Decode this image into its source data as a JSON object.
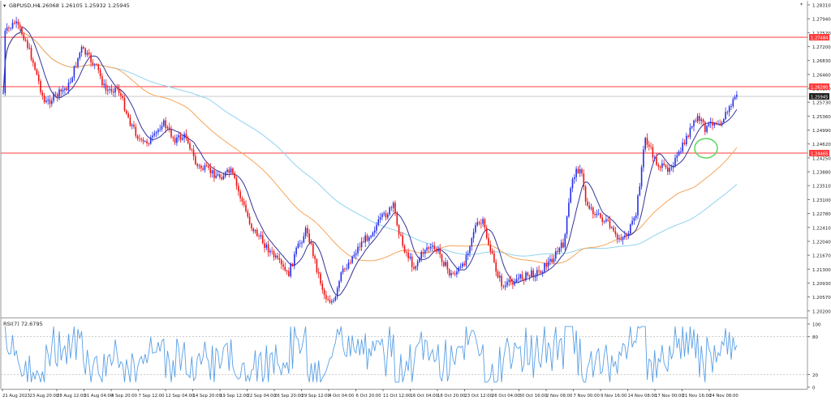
{
  "header": {
    "symbol": "GBPUSD,H4",
    "ohlc": "1.26068 1.26105 1.25932 1.25945",
    "dropdown_glyph": "▾"
  },
  "price_axis": {
    "ticks": [
      "1.28310",
      "1.27940",
      "1.27570",
      "1.27200",
      "1.26830",
      "1.26460",
      "1.26100",
      "1.25730",
      "1.25360",
      "1.24990",
      "1.24620",
      "1.24250",
      "1.23880",
      "1.23510",
      "1.23100",
      "1.22780",
      "1.22410",
      "1.22040",
      "1.21670",
      "1.21300",
      "1.20930",
      "1.20570",
      "1.20200"
    ],
    "levels": [
      {
        "label": "1.27484",
        "value": 1.27484,
        "color": "#ff3b3b"
      },
      {
        "label": "1.26280",
        "value": 1.2628,
        "color": "#ff3b3b"
      },
      {
        "label": "1.24465",
        "value": 1.24465,
        "color": "#ff3b3b"
      }
    ],
    "current_label": "1.25945",
    "current_value": 1.25945,
    "range": [
      1.1995,
      1.285
    ]
  },
  "rsi": {
    "label": "RSI(7) 72.6795",
    "ticks": [
      "100",
      "80",
      "20",
      "0"
    ],
    "levels": [
      80,
      20
    ],
    "last_value": 72.6795
  },
  "time_axis": [
    "21 Aug 2023",
    "23 Aug 20:00",
    "28 Aug 12:00",
    "31 Aug 04:00",
    "4 Sep 20:00",
    "7 Sep 12:00",
    "12 Sep 04:00",
    "14 Sep 20:00",
    "19 Sep 12:00",
    "22 Sep 04:00",
    "26 Sep 20:00",
    "29 Sep 12:00",
    "4 Oct 04:00",
    "6 Oct 20:00",
    "11 Oct 12:00",
    "16 Oct 04:00",
    "18 Oct 20:00",
    "23 Oct 12:00",
    "26 Oct 04:00",
    "30 Oct 16:00",
    "2 Nov 08:00",
    "7 Nov 00:00",
    "9 Nov 16:00",
    "14 Nov 08:00",
    "17 Nov 00:00",
    "21 Nov 16:00",
    "24 Nov 08:00"
  ],
  "colors": {
    "bull": "#2430e8",
    "bear": "#ee1111",
    "ma_fast": "#333399",
    "ma_mid": "#f6a55a",
    "ma_slow": "#8fd3ef",
    "level_line": "#ff3b3b",
    "rsi_line": "#5aa0e6",
    "circle": "#5ad65a"
  }
}
